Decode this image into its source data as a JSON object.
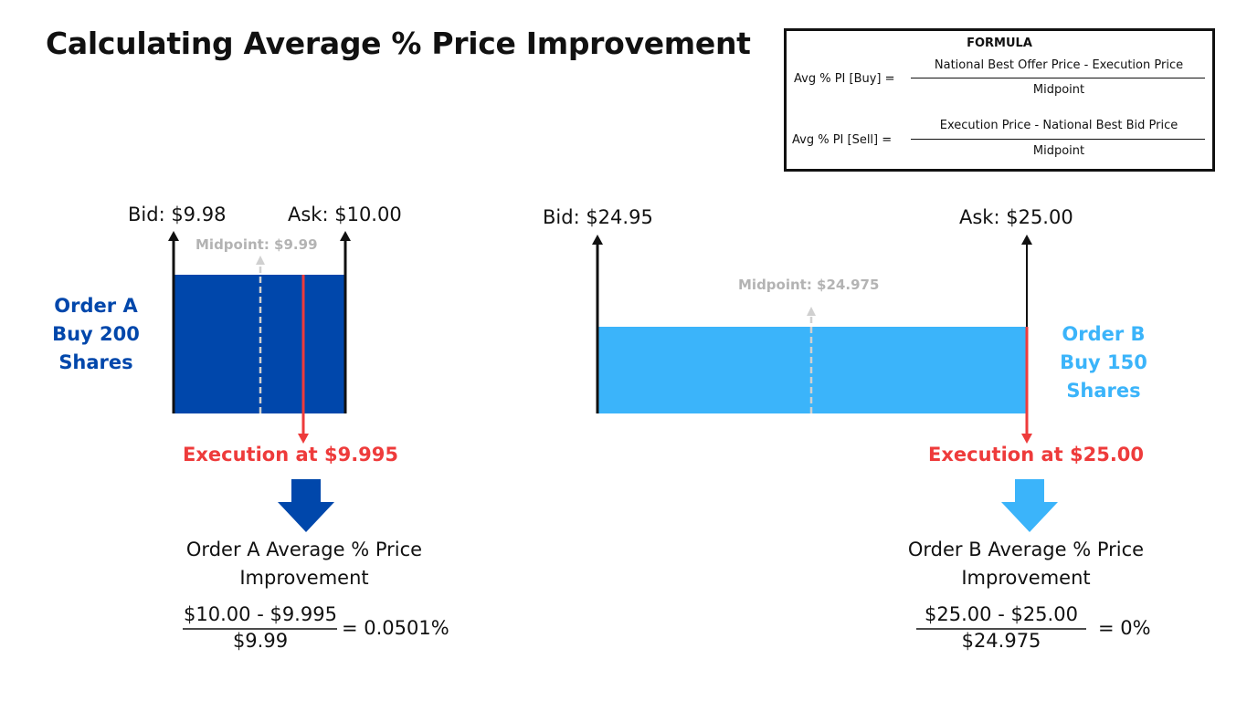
{
  "title": "Calculating Average % Price Improvement",
  "formula": {
    "heading": "FORMULA",
    "buy_label": "Avg % PI [Buy] =",
    "buy_numerator": "National Best Offer Price - Execution Price",
    "buy_denominator": "Midpoint",
    "sell_label": "Avg % PI [Sell] =",
    "sell_numerator": "Execution Price - National Best Bid Price",
    "sell_denominator": "Midpoint"
  },
  "order_a": {
    "bid_label": "Bid: $9.98",
    "ask_label": "Ask: $10.00",
    "midpoint_label": "Midpoint: $9.99",
    "order_line1": "Order A",
    "order_line2": "Buy 200",
    "order_line3": "Shares",
    "execution_label": "Execution at $9.995",
    "result_line1": "Order A  Average % Price",
    "result_line2": "Improvement",
    "calc_numerator": "$10.00 - $9.995",
    "calc_denominator": "$9.99",
    "calc_result": "= 0.0501%"
  },
  "order_b": {
    "bid_label": "Bid: $24.95",
    "ask_label": "Ask: $25.00",
    "midpoint_label": "Midpoint: $24.975",
    "order_line1": "Order B",
    "order_line2": "Buy 150",
    "order_line3": "Shares",
    "execution_label": "Execution at $25.00",
    "result_line1": "Order B Average % Price",
    "result_line2": "Improvement",
    "calc_numerator": "$25.00 - $25.00",
    "calc_denominator": "$24.975",
    "calc_result": "= 0%"
  },
  "colors": {
    "order_a_fill": "#0047ab",
    "order_b_fill": "#3bb4fa",
    "execution_red": "#ee3b3b",
    "midpoint_gray": "#d0d0d0",
    "text_dark": "#111111"
  }
}
